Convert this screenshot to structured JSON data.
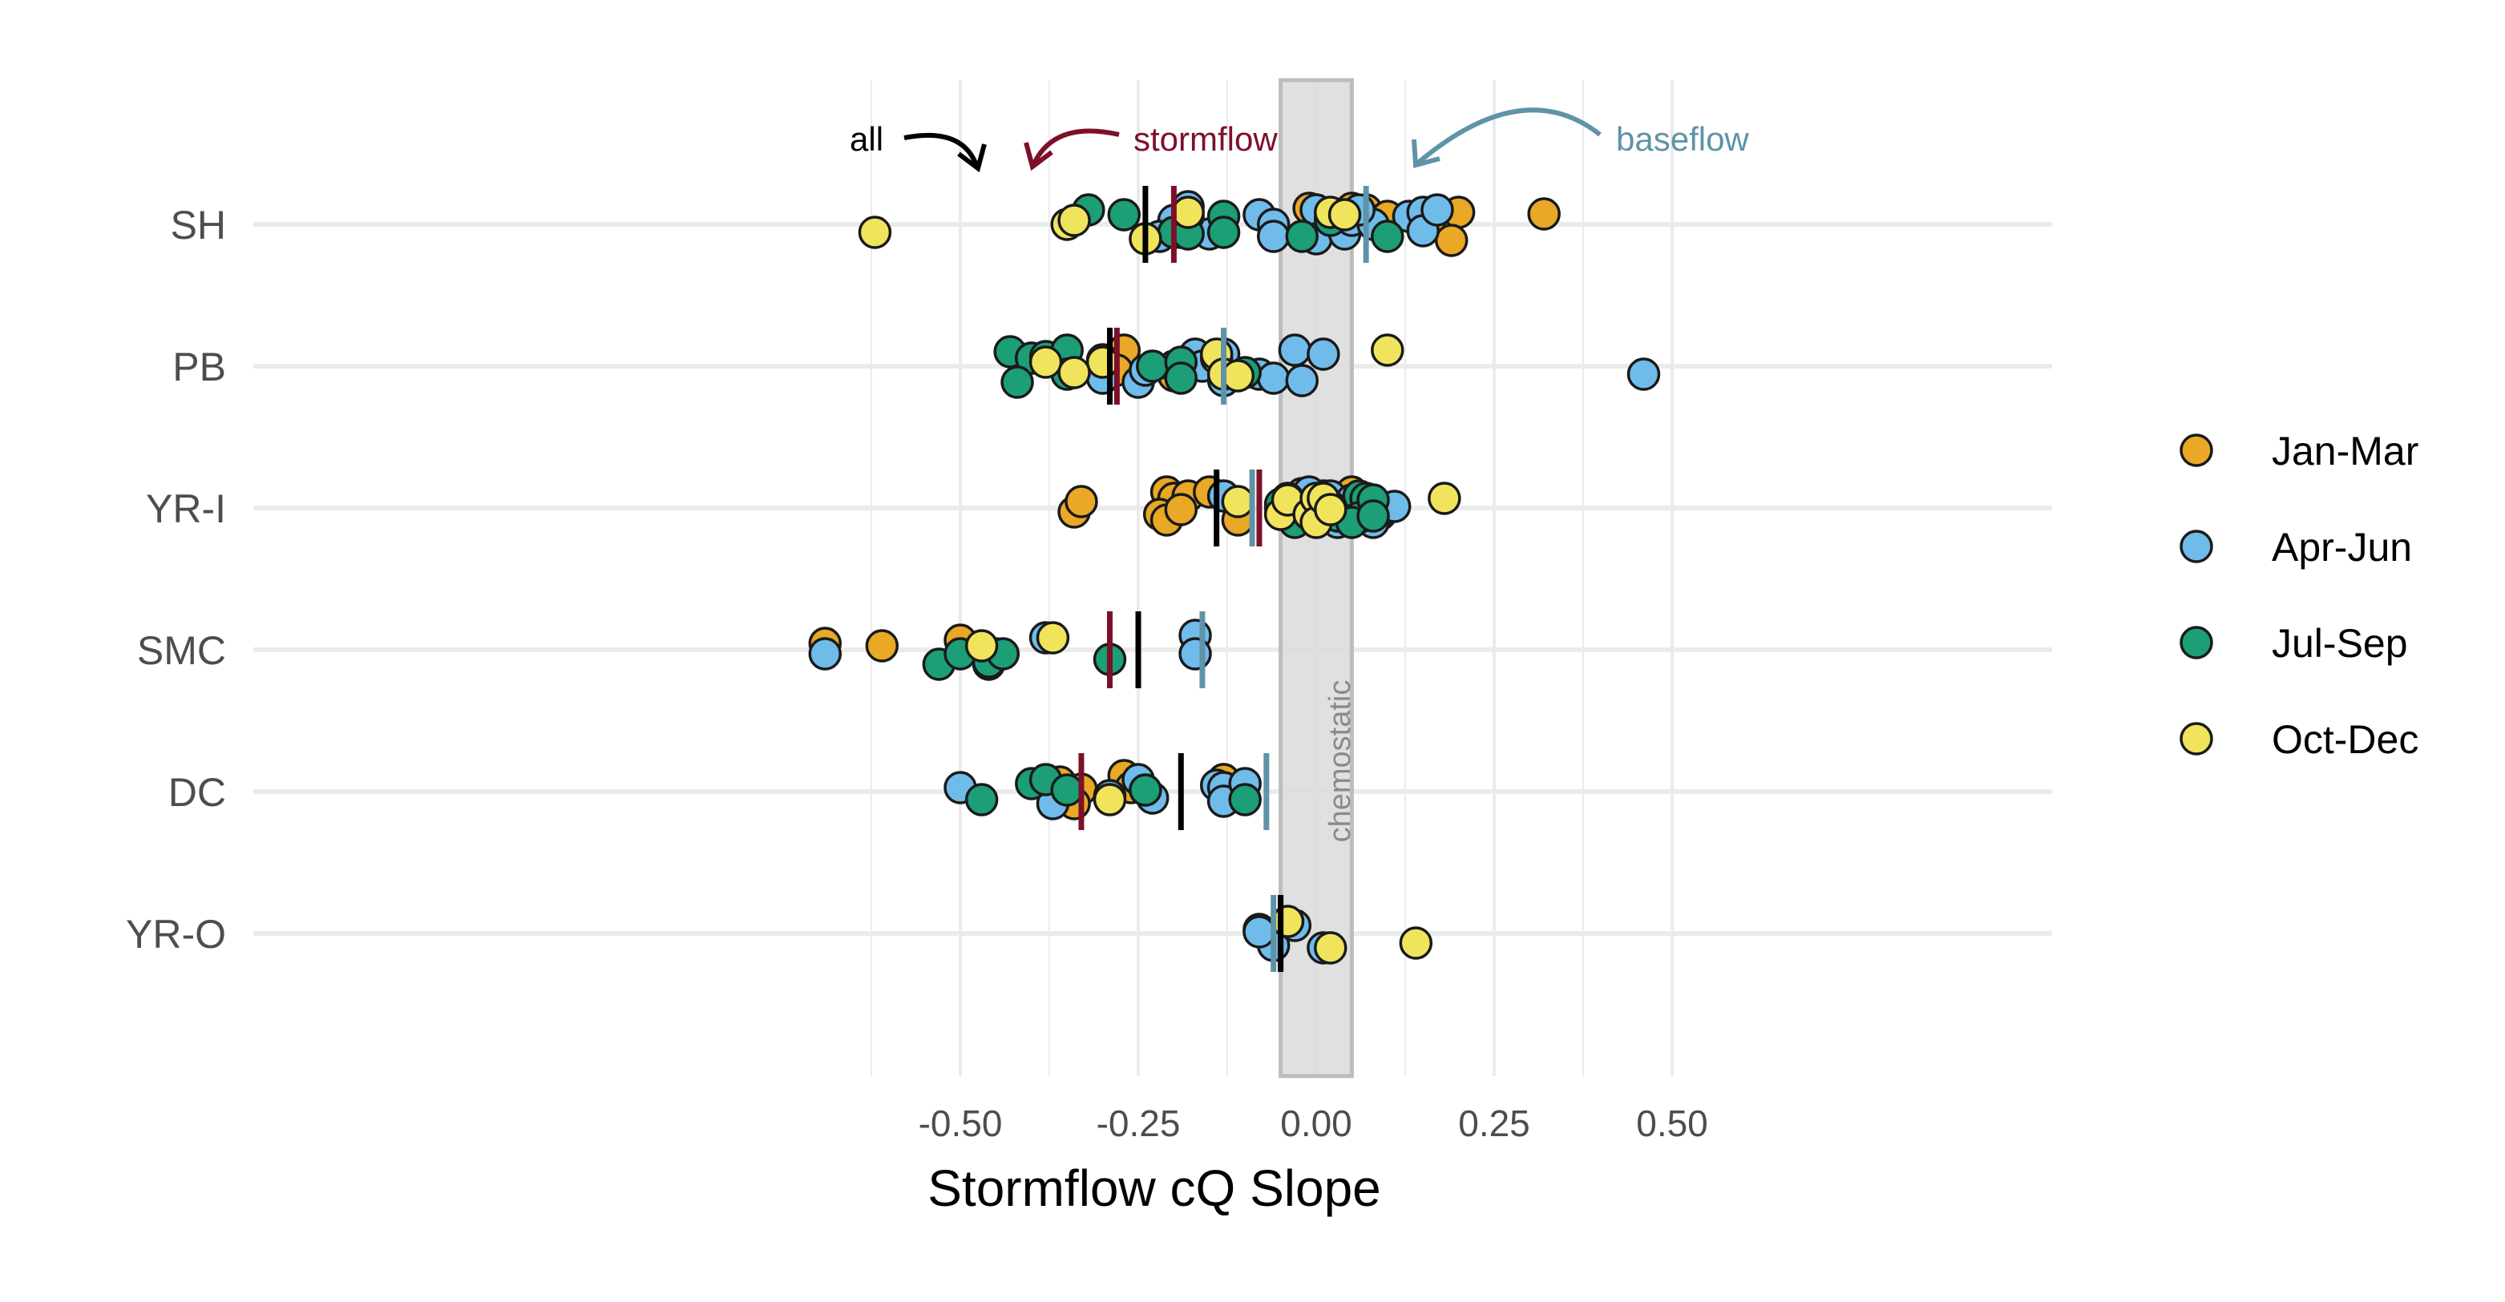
{
  "chart_data": {
    "type": "scatter",
    "xlabel": "Stormflow cQ Slope",
    "xlim": [
      -0.7,
      0.52
    ],
    "x_ticks": [
      -0.5,
      -0.25,
      0.0,
      0.25,
      0.5
    ],
    "x_tick_labels": [
      "-0.50",
      "-0.25",
      "0.00",
      "0.25",
      "0.50"
    ],
    "grid": true,
    "sites": [
      "SH",
      "PB",
      "YR-I",
      "SMC",
      "DC",
      "YR-O"
    ],
    "legend": {
      "placement": "right",
      "entries": [
        {
          "name": "Jan-Mar",
          "color": "#E9A825"
        },
        {
          "name": "Apr-Jun",
          "color": "#6FBCEB"
        },
        {
          "name": "Jul-Sep",
          "color": "#1C9E77"
        },
        {
          "name": "Oct-Dec",
          "color": "#F0E45C"
        }
      ]
    },
    "chemostatic_band": {
      "label": "chemostatic",
      "xmin": -0.05,
      "xmax": 0.05,
      "color": "#DDDDDD"
    },
    "summary_line_colors": {
      "all": "#000000",
      "stormflow": "#7D1029",
      "baseflow": "#5F93A8"
    },
    "annotations": [
      {
        "text": "all",
        "color": "#000000"
      },
      {
        "text": "stormflow",
        "color": "#7D1029"
      },
      {
        "text": "baseflow",
        "color": "#5F93A8"
      }
    ],
    "summary_lines": [
      {
        "site": "SH",
        "all": -0.24,
        "stormflow": -0.2,
        "baseflow": 0.07
      },
      {
        "site": "PB",
        "all": -0.29,
        "stormflow": -0.28,
        "baseflow": -0.13
      },
      {
        "site": "YR-I",
        "all": -0.14,
        "stormflow": -0.08,
        "baseflow": -0.09
      },
      {
        "site": "SMC",
        "all": -0.25,
        "stormflow": -0.29,
        "baseflow": -0.16
      },
      {
        "site": "DC",
        "all": -0.19,
        "stormflow": -0.33,
        "baseflow": -0.07
      },
      {
        "site": "YR-O",
        "all": -0.05,
        "stormflow": -0.05,
        "baseflow": -0.06
      }
    ],
    "series": [
      {
        "name": "Jan-Mar",
        "color": "#E9A825",
        "points": [
          [
            -0.01,
            "SH",
            0.2
          ],
          [
            0.05,
            "SH",
            0.2
          ],
          [
            0.07,
            "SH",
            0.18
          ],
          [
            0.09,
            "SH",
            0.05
          ],
          [
            0.1,
            "SH",
            0.1
          ],
          [
            0.16,
            "SH",
            0.05
          ],
          [
            0.2,
            "SH",
            0.15
          ],
          [
            0.32,
            "SH",
            0.13
          ],
          [
            0.19,
            "SH",
            -0.2
          ],
          [
            0.03,
            "SH",
            0.05
          ],
          [
            -0.27,
            "PB",
            0.2
          ],
          [
            -0.28,
            "PB",
            -0.05
          ],
          [
            -0.2,
            "PB",
            -0.12
          ],
          [
            -0.21,
            "YR-I",
            0.2
          ],
          [
            -0.2,
            "YR-I",
            0.12
          ],
          [
            -0.18,
            "YR-I",
            0.15
          ],
          [
            -0.15,
            "YR-I",
            0.2
          ],
          [
            -0.34,
            "YR-I",
            -0.05
          ],
          [
            -0.33,
            "YR-I",
            0.08
          ],
          [
            -0.22,
            "YR-I",
            -0.08
          ],
          [
            -0.21,
            "YR-I",
            -0.15
          ],
          [
            -0.19,
            "YR-I",
            -0.02
          ],
          [
            -0.11,
            "YR-I",
            -0.15
          ],
          [
            -0.05,
            "YR-I",
            0.0
          ],
          [
            -0.02,
            "YR-I",
            0.18
          ],
          [
            0.01,
            "YR-I",
            0.15
          ],
          [
            0.05,
            "YR-I",
            0.2
          ],
          [
            0.04,
            "YR-I",
            -0.1
          ],
          [
            0.02,
            "YR-I",
            0.08
          ],
          [
            0.06,
            "YR-I",
            0.12
          ],
          [
            0.08,
            "YR-I",
            -0.05
          ],
          [
            -0.69,
            "SMC",
            0.08
          ],
          [
            -0.61,
            "SMC",
            0.05
          ],
          [
            -0.5,
            "SMC",
            0.12
          ],
          [
            -0.45,
            "SMC",
            -0.05
          ],
          [
            -0.36,
            "DC",
            0.12
          ],
          [
            -0.33,
            "DC",
            0.03
          ],
          [
            -0.34,
            "DC",
            -0.15
          ],
          [
            -0.27,
            "DC",
            0.2
          ],
          [
            -0.26,
            "DC",
            0.05
          ],
          [
            -0.13,
            "DC",
            0.15
          ],
          [
            -0.13,
            "DC",
            0.15
          ]
        ]
      },
      {
        "name": "Apr-Jun",
        "color": "#6FBCEB",
        "points": [
          [
            -0.18,
            "SH",
            0.22
          ],
          [
            -0.2,
            "SH",
            0.05
          ],
          [
            -0.22,
            "SH",
            -0.15
          ],
          [
            -0.19,
            "SH",
            -0.1
          ],
          [
            -0.15,
            "SH",
            -0.12
          ],
          [
            -0.08,
            "SH",
            0.12
          ],
          [
            -0.06,
            "SH",
            0.0
          ],
          [
            -0.06,
            "SH",
            -0.15
          ],
          [
            0.0,
            "SH",
            0.18
          ],
          [
            0.0,
            "SH",
            -0.18
          ],
          [
            0.04,
            "SH",
            -0.05
          ],
          [
            0.04,
            "SH",
            -0.12
          ],
          [
            0.05,
            "SH",
            0.05
          ],
          [
            0.08,
            "SH",
            0.0
          ],
          [
            0.13,
            "SH",
            0.1
          ],
          [
            0.15,
            "SH",
            0.15
          ],
          [
            0.15,
            "SH",
            -0.08
          ],
          [
            0.17,
            "SH",
            0.18
          ],
          [
            0.06,
            "SH",
            0.18
          ],
          [
            0.02,
            "SH",
            0.1
          ],
          [
            -0.3,
            "PB",
            0.08
          ],
          [
            -0.3,
            "PB",
            -0.15
          ],
          [
            -0.25,
            "PB",
            -0.2
          ],
          [
            -0.24,
            "PB",
            -0.05
          ],
          [
            -0.2,
            "PB",
            0.0
          ],
          [
            -0.17,
            "PB",
            0.15
          ],
          [
            -0.16,
            "PB",
            0.0
          ],
          [
            -0.13,
            "PB",
            0.15
          ],
          [
            -0.13,
            "PB",
            -0.18
          ],
          [
            -0.08,
            "PB",
            -0.1
          ],
          [
            -0.06,
            "PB",
            -0.15
          ],
          [
            -0.03,
            "PB",
            0.2
          ],
          [
            -0.02,
            "PB",
            -0.18
          ],
          [
            0.01,
            "PB",
            0.15
          ],
          [
            0.46,
            "PB",
            -0.1
          ],
          [
            -0.13,
            "YR-I",
            0.15
          ],
          [
            -0.02,
            "YR-I",
            0.05
          ],
          [
            -0.01,
            "YR-I",
            0.2
          ],
          [
            0.0,
            "YR-I",
            -0.1
          ],
          [
            0.02,
            "YR-I",
            0.15
          ],
          [
            0.03,
            "YR-I",
            -0.18
          ],
          [
            0.05,
            "YR-I",
            0.1
          ],
          [
            0.07,
            "YR-I",
            0.0
          ],
          [
            0.09,
            "YR-I",
            -0.08
          ],
          [
            0.1,
            "YR-I",
            0.0
          ],
          [
            0.11,
            "YR-I",
            0.02
          ],
          [
            0.08,
            "YR-I",
            -0.18
          ],
          [
            -0.04,
            "YR-I",
            0.12
          ],
          [
            0.0,
            "YR-I",
            0.08
          ],
          [
            -0.69,
            "SMC",
            -0.05
          ],
          [
            -0.38,
            "SMC",
            0.15
          ],
          [
            -0.17,
            "SMC",
            0.18
          ],
          [
            -0.17,
            "SMC",
            -0.05
          ],
          [
            -0.5,
            "DC",
            0.05
          ],
          [
            -0.37,
            "DC",
            -0.05
          ],
          [
            -0.37,
            "DC",
            -0.15
          ],
          [
            -0.29,
            "DC",
            -0.05
          ],
          [
            -0.25,
            "DC",
            0.15
          ],
          [
            -0.23,
            "DC",
            -0.08
          ],
          [
            -0.14,
            "DC",
            0.08
          ],
          [
            -0.13,
            "DC",
            0.05
          ],
          [
            -0.13,
            "DC",
            -0.12
          ],
          [
            -0.1,
            "DC",
            0.1
          ],
          [
            -0.08,
            "YR-O",
            0.05
          ],
          [
            -0.06,
            "YR-O",
            -0.15
          ],
          [
            -0.03,
            "YR-O",
            0.1
          ],
          [
            0.01,
            "YR-O",
            -0.18
          ],
          [
            -0.08,
            "YR-O",
            0.02
          ]
        ]
      },
      {
        "name": "Jul-Sep",
        "color": "#1C9E77",
        "points": [
          [
            -0.32,
            "SH",
            0.18
          ],
          [
            -0.27,
            "SH",
            0.12
          ],
          [
            -0.18,
            "SH",
            0.1
          ],
          [
            -0.13,
            "SH",
            0.1
          ],
          [
            -0.13,
            "SH",
            -0.1
          ],
          [
            -0.2,
            "SH",
            -0.1
          ],
          [
            -0.18,
            "SH",
            -0.12
          ],
          [
            -0.02,
            "SH",
            -0.15
          ],
          [
            0.1,
            "SH",
            -0.15
          ],
          [
            0.02,
            "SH",
            0.05
          ],
          [
            -0.43,
            "PB",
            0.18
          ],
          [
            -0.4,
            "PB",
            0.1
          ],
          [
            -0.4,
            "PB",
            0.1
          ],
          [
            -0.38,
            "PB",
            0.12
          ],
          [
            -0.35,
            "PB",
            0.2
          ],
          [
            -0.42,
            "PB",
            -0.2
          ],
          [
            -0.35,
            "PB",
            -0.1
          ],
          [
            -0.23,
            "PB",
            0.0
          ],
          [
            -0.19,
            "PB",
            0.05
          ],
          [
            -0.19,
            "PB",
            -0.15
          ],
          [
            -0.1,
            "PB",
            -0.08
          ],
          [
            -0.05,
            "YR-I",
            0.05
          ],
          [
            -0.02,
            "YR-I",
            -0.05
          ],
          [
            -0.03,
            "YR-I",
            -0.18
          ],
          [
            0.0,
            "YR-I",
            -0.12
          ],
          [
            0.03,
            "YR-I",
            -0.1
          ],
          [
            0.06,
            "YR-I",
            0.15
          ],
          [
            0.07,
            "YR-I",
            0.12
          ],
          [
            0.06,
            "YR-I",
            -0.12
          ],
          [
            0.05,
            "YR-I",
            -0.18
          ],
          [
            0.08,
            "YR-I",
            0.1
          ],
          [
            0.02,
            "YR-I",
            0.02
          ],
          [
            0.08,
            "YR-I",
            -0.1
          ],
          [
            -0.53,
            "SMC",
            -0.18
          ],
          [
            -0.5,
            "SMC",
            -0.05
          ],
          [
            -0.46,
            "SMC",
            -0.18
          ],
          [
            -0.46,
            "SMC",
            -0.15
          ],
          [
            -0.44,
            "SMC",
            -0.05
          ],
          [
            -0.29,
            "SMC",
            -0.12
          ],
          [
            -0.47,
            "DC",
            -0.1
          ],
          [
            -0.4,
            "DC",
            0.1
          ],
          [
            -0.38,
            "DC",
            0.15
          ],
          [
            -0.35,
            "DC",
            0.02
          ],
          [
            -0.24,
            "DC",
            0.02
          ],
          [
            -0.24,
            "DC",
            0.02
          ],
          [
            -0.1,
            "DC",
            -0.1
          ]
        ]
      },
      {
        "name": "Oct-Dec",
        "color": "#F0E45C",
        "points": [
          [
            -0.62,
            "SH",
            -0.1
          ],
          [
            -0.35,
            "SH",
            0.0
          ],
          [
            -0.34,
            "SH",
            0.05
          ],
          [
            -0.18,
            "SH",
            0.15
          ],
          [
            -0.24,
            "SH",
            -0.18
          ],
          [
            0.02,
            "SH",
            0.15
          ],
          [
            0.04,
            "SH",
            0.12
          ],
          [
            -0.14,
            "PB",
            0.1
          ],
          [
            -0.3,
            "PB",
            0.05
          ],
          [
            -0.14,
            "PB",
            0.15
          ],
          [
            -0.13,
            "PB",
            -0.1
          ],
          [
            -0.11,
            "PB",
            -0.12
          ],
          [
            -0.38,
            "PB",
            0.05
          ],
          [
            -0.34,
            "PB",
            -0.08
          ],
          [
            0.1,
            "PB",
            0.2
          ],
          [
            -0.11,
            "YR-I",
            0.08
          ],
          [
            -0.05,
            "YR-I",
            -0.08
          ],
          [
            -0.04,
            "YR-I",
            0.1
          ],
          [
            -0.01,
            "YR-I",
            -0.08
          ],
          [
            0.0,
            "YR-I",
            0.12
          ],
          [
            0.0,
            "YR-I",
            -0.18
          ],
          [
            0.01,
            "YR-I",
            0.12
          ],
          [
            0.02,
            "YR-I",
            -0.02
          ],
          [
            0.18,
            "YR-I",
            0.12
          ],
          [
            -0.47,
            "SMC",
            0.05
          ],
          [
            -0.37,
            "SMC",
            0.15
          ],
          [
            -0.29,
            "DC",
            -0.1
          ],
          [
            -0.04,
            "YR-O",
            0.15
          ],
          [
            0.02,
            "YR-O",
            -0.18
          ],
          [
            0.14,
            "YR-O",
            -0.12
          ]
        ]
      }
    ]
  }
}
